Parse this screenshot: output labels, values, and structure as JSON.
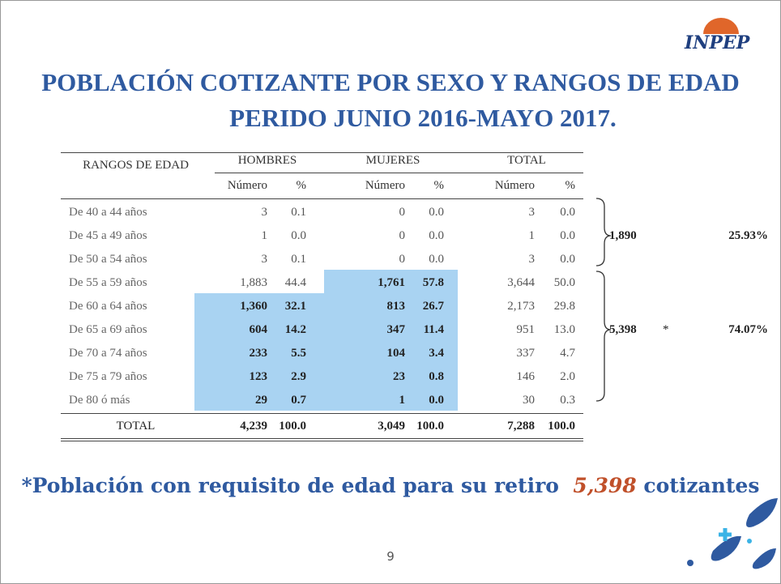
{
  "logo": "INPEP",
  "header": {
    "title_line1": "POBLACIÓN COTIZANTE POR SEXO Y RANGOS DE EDAD",
    "title_line2": "PERIDO JUNIO 2016-MAYO 2017."
  },
  "table": {
    "row_header": "RANGOS DE EDAD",
    "groups": [
      "HOMBRES",
      "MUJERES",
      "TOTAL"
    ],
    "subheaders": [
      "Número",
      "%",
      "Número",
      "%",
      "Número",
      "%"
    ],
    "rows": [
      [
        "De 40 a 44 años",
        "3",
        "0.1",
        "0",
        "0.0",
        "3",
        "0.0"
      ],
      [
        "De 45 a 49 años",
        "1",
        "0.0",
        "0",
        "0.0",
        "1",
        "0.0"
      ],
      [
        "De 50 a 54 años",
        "3",
        "0.1",
        "0",
        "0.0",
        "3",
        "0.0"
      ],
      [
        "De 55 a 59 años",
        "1,883",
        "44.4",
        "1,761",
        "57.8",
        "3,644",
        "50.0"
      ],
      [
        "De 60 a 64 años",
        "1,360",
        "32.1",
        "813",
        "26.7",
        "2,173",
        "29.8"
      ],
      [
        "De 65 a 69 años",
        "604",
        "14.2",
        "347",
        "11.4",
        "951",
        "13.0"
      ],
      [
        "De 70 a 74 años",
        "233",
        "5.5",
        "104",
        "3.4",
        "337",
        "4.7"
      ],
      [
        "De 75 a 79 años",
        "123",
        "2.9",
        "23",
        "0.8",
        "146",
        "2.0"
      ],
      [
        "De 80 ó más",
        "29",
        "0.7",
        "1",
        "0.0",
        "30",
        "0.3"
      ]
    ],
    "total": [
      "TOTAL",
      "4,239",
      "100.0",
      "3,049",
      "100.0",
      "7,288",
      "100.0"
    ]
  },
  "summary": [
    {
      "total": "1,890",
      "percent": "25.93%"
    },
    {
      "total": "5,398",
      "mark": "*",
      "percent": "74.07%"
    }
  ],
  "footnote": {
    "text": "*Población con requisito de edad para su retiro",
    "number": "5,398",
    "unit": "cotizantes"
  },
  "page_number": "9"
}
